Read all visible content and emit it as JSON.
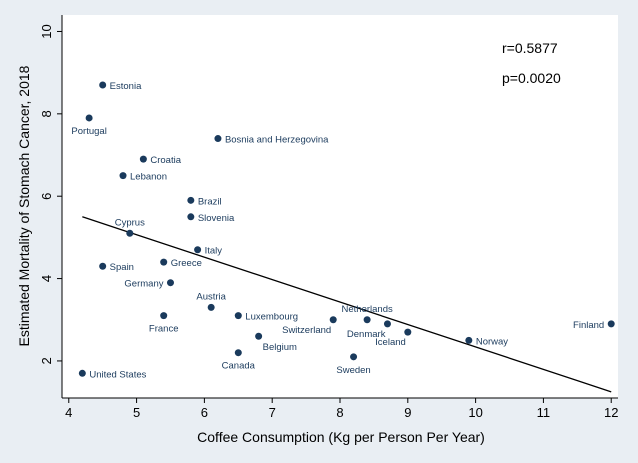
{
  "chart_data": {
    "type": "scatter",
    "xlabel": "Coffee Consumption (Kg per Person Per Year)",
    "ylabel": "Estimated Mortality of Stomach Cancer, 2018",
    "xlim": [
      3.9,
      12.1
    ],
    "ylim": [
      1.1,
      10.4
    ],
    "xticks": [
      4,
      5,
      6,
      7,
      8,
      9,
      10,
      11,
      12
    ],
    "yticks": [
      2,
      4,
      6,
      8,
      10
    ],
    "grid": false,
    "point_color": "#1a3a5c",
    "points": [
      {
        "label": "Estonia",
        "x": 4.5,
        "y": 8.7,
        "pos": "right"
      },
      {
        "label": "Portugal",
        "x": 4.3,
        "y": 7.9,
        "pos": "below"
      },
      {
        "label": "Bosnia and Herzegovina",
        "x": 6.2,
        "y": 7.4,
        "pos": "right"
      },
      {
        "label": "Croatia",
        "x": 5.1,
        "y": 6.9,
        "pos": "right"
      },
      {
        "label": "Lebanon",
        "x": 4.8,
        "y": 6.5,
        "pos": "right"
      },
      {
        "label": "Brazil",
        "x": 5.8,
        "y": 5.9,
        "pos": "right"
      },
      {
        "label": "Slovenia",
        "x": 5.8,
        "y": 5.5,
        "pos": "right"
      },
      {
        "label": "Cyprus",
        "x": 4.9,
        "y": 5.1,
        "pos": "above"
      },
      {
        "label": "Italy",
        "x": 5.9,
        "y": 4.7,
        "pos": "right"
      },
      {
        "label": "Spain",
        "x": 4.5,
        "y": 4.3,
        "pos": "right"
      },
      {
        "label": "Greece",
        "x": 5.4,
        "y": 4.4,
        "pos": "right"
      },
      {
        "label": "Germany",
        "x": 5.5,
        "y": 3.9,
        "pos": "left"
      },
      {
        "label": "Austria",
        "x": 6.1,
        "y": 3.3,
        "pos": "above"
      },
      {
        "label": "Luxembourg",
        "x": 6.5,
        "y": 3.1,
        "pos": "right"
      },
      {
        "label": "France",
        "x": 5.4,
        "y": 3.1,
        "pos": "below"
      },
      {
        "label": "Belgium",
        "x": 6.8,
        "y": 2.6,
        "pos": "belowright"
      },
      {
        "label": "Canada",
        "x": 6.5,
        "y": 2.2,
        "pos": "below"
      },
      {
        "label": "Switzerland",
        "x": 7.9,
        "y": 3.0,
        "pos": "belowleft"
      },
      {
        "label": "Netherlands",
        "x": 8.4,
        "y": 3.0,
        "pos": "above"
      },
      {
        "label": "Denmark",
        "x": 8.7,
        "y": 2.9,
        "pos": "belowleft"
      },
      {
        "label": "Iceland",
        "x": 9.0,
        "y": 2.7,
        "pos": "belowleft"
      },
      {
        "label": "Sweden",
        "x": 8.2,
        "y": 2.1,
        "pos": "below"
      },
      {
        "label": "Norway",
        "x": 9.9,
        "y": 2.5,
        "pos": "right"
      },
      {
        "label": "Finland",
        "x": 12.0,
        "y": 2.9,
        "pos": "left"
      },
      {
        "label": "United States",
        "x": 4.2,
        "y": 1.7,
        "pos": "right"
      }
    ],
    "fit_line": {
      "x": [
        4.2,
        12.0
      ],
      "y": [
        5.5,
        1.25
      ]
    },
    "annotations": [
      "r=0.5877",
      "p=0.0020"
    ]
  }
}
